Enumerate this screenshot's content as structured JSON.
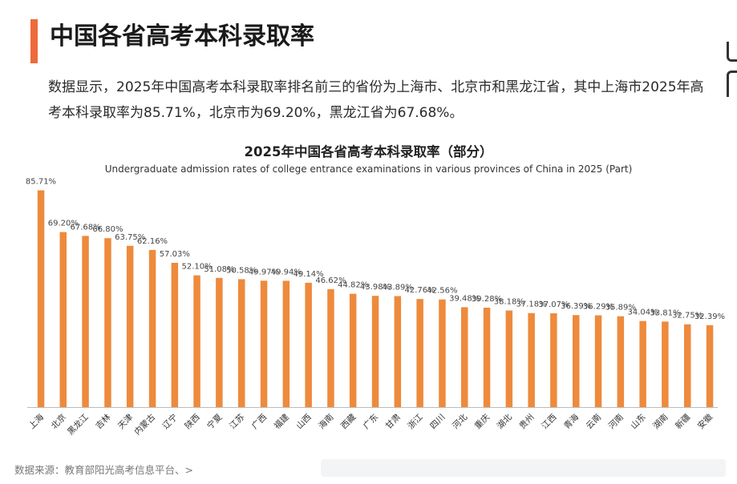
{
  "header": {
    "title": "中国各省高考本科录取率"
  },
  "summary": "数据显示，2025年中国高考本科录取率排名前三的省份为上海市、北京市和黑龙江省，其中上海市2025年高考本科录取率为85.71%，北京市为69.20%，黑龙江省为67.68%。",
  "footer": {
    "source": "数据来源：教育部阳光高考信息平台、>"
  },
  "colors": {
    "accent": "#ee6a3a",
    "bar": "#ee8a3c"
  },
  "chart_data": {
    "type": "bar",
    "title": "2025年中国各省高考本科录取率（部分）",
    "subtitle": "Undergraduate admission rates of college entrance examinations in various provinces of China in 2025 (Part)",
    "xlabel": "",
    "ylabel": "",
    "ylim": [
      0,
      90
    ],
    "grid": false,
    "categories": [
      "上海",
      "北京",
      "黑龙江",
      "吉林",
      "天津",
      "内蒙古",
      "辽宁",
      "陕西",
      "宁夏",
      "江苏",
      "广西",
      "福建",
      "山西",
      "海南",
      "西藏",
      "广东",
      "甘肃",
      "浙江",
      "四川",
      "河北",
      "重庆",
      "湖北",
      "贵州",
      "江西",
      "青海",
      "云南",
      "河南",
      "山东",
      "湖南",
      "新疆",
      "安徽"
    ],
    "values": [
      85.71,
      69.2,
      67.68,
      66.8,
      63.75,
      62.16,
      57.03,
      52.1,
      51.08,
      50.58,
      49.97,
      49.94,
      49.14,
      46.62,
      44.82,
      43.98,
      43.89,
      42.76,
      42.56,
      39.48,
      39.28,
      38.18,
      37.18,
      37.07,
      36.39,
      36.29,
      35.89,
      34.04,
      33.81,
      32.75,
      32.39
    ],
    "labels": [
      "85.71%",
      "69.20%",
      "67.68%",
      "66.80%",
      "63.75%",
      "62.16%",
      "57.03%",
      "52.10%",
      "51.08%",
      "50.58%",
      "49.97%",
      "49.94%",
      "49.14%",
      "46.62%",
      "44.82%",
      "43.98%",
      "43.89%",
      "42.76%",
      "42.56%",
      "39.48%",
      "39.28%",
      "38.18%",
      "37.18%",
      "37.07%",
      "36.39%",
      "36.29%",
      "35.89%",
      "34.04%",
      "33.81%",
      "32.75%",
      "32.39%"
    ]
  }
}
